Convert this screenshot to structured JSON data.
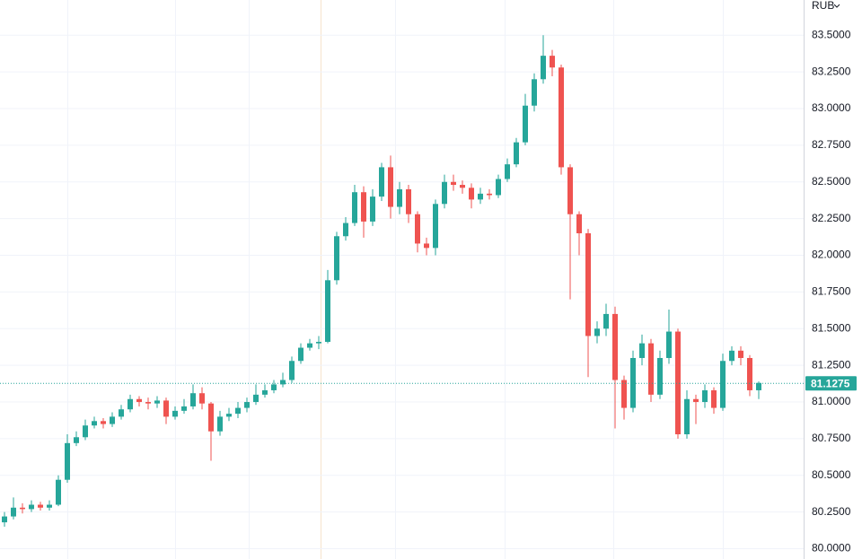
{
  "chart_data": {
    "type": "candlestick",
    "currency": "RUB",
    "up_color": "#26a69a",
    "down_color": "#ef5350",
    "grid": true,
    "ylim": [
      79.93,
      83.74
    ],
    "yticks": [
      {
        "value": 80,
        "label": "80.0000"
      },
      {
        "value": 80.25,
        "label": "80.2500"
      },
      {
        "value": 80.5,
        "label": "80.5000"
      },
      {
        "value": 80.75,
        "label": "80.7500"
      },
      {
        "value": 81,
        "label": "81.0000"
      },
      {
        "value": 81.25,
        "label": "81.2500"
      },
      {
        "value": 81.5,
        "label": "81.5000"
      },
      {
        "value": 81.75,
        "label": "81.7500"
      },
      {
        "value": 82,
        "label": "82.0000"
      },
      {
        "value": 82.25,
        "label": "82.2500"
      },
      {
        "value": 82.5,
        "label": "82.5000"
      },
      {
        "value": 82.75,
        "label": "82.7500"
      },
      {
        "value": 83,
        "label": "83.0000"
      },
      {
        "value": 83.25,
        "label": "83.2500"
      },
      {
        "value": 83.5,
        "label": "83.5000"
      }
    ],
    "last_price": 81.1275,
    "candles": [
      [
        80.18,
        80.25,
        80.15,
        80.22
      ],
      [
        80.22,
        80.35,
        80.2,
        80.28
      ],
      [
        80.28,
        80.31,
        80.24,
        80.27
      ],
      [
        80.27,
        80.33,
        80.25,
        80.3
      ],
      [
        80.3,
        80.32,
        80.26,
        80.28
      ],
      [
        80.28,
        80.33,
        80.26,
        80.3
      ],
      [
        80.3,
        80.5,
        80.29,
        80.47
      ],
      [
        80.47,
        80.78,
        80.45,
        80.72
      ],
      [
        80.72,
        80.8,
        80.7,
        80.76
      ],
      [
        80.76,
        80.88,
        80.74,
        80.84
      ],
      [
        80.84,
        80.9,
        80.82,
        80.87
      ],
      [
        80.87,
        80.89,
        80.82,
        80.85
      ],
      [
        80.85,
        80.93,
        80.83,
        80.9
      ],
      [
        80.9,
        80.98,
        80.88,
        80.95
      ],
      [
        80.95,
        81.05,
        80.93,
        81.02
      ],
      [
        81.02,
        81.04,
        80.97,
        81.0
      ],
      [
        81.0,
        81.03,
        80.95,
        80.99
      ],
      [
        80.99,
        81.04,
        80.96,
        81.01
      ],
      [
        81.01,
        81.03,
        80.85,
        80.9
      ],
      [
        80.9,
        80.97,
        80.88,
        80.94
      ],
      [
        80.94,
        81.02,
        80.92,
        80.97
      ],
      [
        80.97,
        81.12,
        80.95,
        81.06
      ],
      [
        81.06,
        81.1,
        80.95,
        80.99
      ],
      [
        80.99,
        81.0,
        80.6,
        80.8
      ],
      [
        80.8,
        80.94,
        80.77,
        80.9
      ],
      [
        80.9,
        80.96,
        80.87,
        80.92
      ],
      [
        80.92,
        81.0,
        80.89,
        80.96
      ],
      [
        80.96,
        81.03,
        80.93,
        81.0
      ],
      [
        81.0,
        81.12,
        80.98,
        81.05
      ],
      [
        81.05,
        81.12,
        81.03,
        81.08
      ],
      [
        81.08,
        81.15,
        81.06,
        81.12
      ],
      [
        81.12,
        81.2,
        81.1,
        81.15
      ],
      [
        81.15,
        81.31,
        81.13,
        81.28
      ],
      [
        81.28,
        81.4,
        81.26,
        81.37
      ],
      [
        81.37,
        81.43,
        81.35,
        81.4
      ],
      [
        81.4,
        81.45,
        81.36,
        81.41
      ],
      [
        81.41,
        81.9,
        81.4,
        81.83
      ],
      [
        81.83,
        82.16,
        81.8,
        82.13
      ],
      [
        82.13,
        82.26,
        82.1,
        82.22
      ],
      [
        82.22,
        82.48,
        82.2,
        82.43
      ],
      [
        82.43,
        82.47,
        82.12,
        82.23
      ],
      [
        82.23,
        82.45,
        82.2,
        82.4
      ],
      [
        82.4,
        82.63,
        82.37,
        82.6
      ],
      [
        82.6,
        82.68,
        82.25,
        82.33
      ],
      [
        82.33,
        82.5,
        82.28,
        82.45
      ],
      [
        82.45,
        82.48,
        82.22,
        82.28
      ],
      [
        82.28,
        82.3,
        82.02,
        82.08
      ],
      [
        82.08,
        82.12,
        82.0,
        82.05
      ],
      [
        82.05,
        82.38,
        82.0,
        82.35
      ],
      [
        82.35,
        82.55,
        82.32,
        82.5
      ],
      [
        82.5,
        82.55,
        82.44,
        82.48
      ],
      [
        82.48,
        82.51,
        82.42,
        82.46
      ],
      [
        82.46,
        82.49,
        82.32,
        82.38
      ],
      [
        82.38,
        82.46,
        82.35,
        82.42
      ],
      [
        82.42,
        82.45,
        82.38,
        82.41
      ],
      [
        82.41,
        82.55,
        82.39,
        82.52
      ],
      [
        82.52,
        82.66,
        82.5,
        82.62
      ],
      [
        82.62,
        82.8,
        82.6,
        82.77
      ],
      [
        82.77,
        83.1,
        82.75,
        83.02
      ],
      [
        83.02,
        83.24,
        82.98,
        83.2
      ],
      [
        83.2,
        83.5,
        83.17,
        83.36
      ],
      [
        83.36,
        83.4,
        83.22,
        83.28
      ],
      [
        83.28,
        83.3,
        82.55,
        82.6
      ],
      [
        82.6,
        82.62,
        81.7,
        82.28
      ],
      [
        82.28,
        82.3,
        82.0,
        82.15
      ],
      [
        82.15,
        82.18,
        81.17,
        81.45
      ],
      [
        81.45,
        81.55,
        81.4,
        81.5
      ],
      [
        81.5,
        81.67,
        81.45,
        81.6
      ],
      [
        81.6,
        81.65,
        80.82,
        81.15
      ],
      [
        81.15,
        81.18,
        80.88,
        80.96
      ],
      [
        80.96,
        81.35,
        80.93,
        81.3
      ],
      [
        81.3,
        81.46,
        81.25,
        81.4
      ],
      [
        81.4,
        81.43,
        81.0,
        81.05
      ],
      [
        81.05,
        81.35,
        81.02,
        81.3
      ],
      [
        81.3,
        81.63,
        81.26,
        81.48
      ],
      [
        81.48,
        81.5,
        80.75,
        80.78
      ],
      [
        80.78,
        81.08,
        80.75,
        81.02
      ],
      [
        81.02,
        81.05,
        80.85,
        81.0
      ],
      [
        81.0,
        81.12,
        80.96,
        81.08
      ],
      [
        81.08,
        81.1,
        80.92,
        80.96
      ],
      [
        80.96,
        81.33,
        80.94,
        81.28
      ],
      [
        81.28,
        81.38,
        81.25,
        81.35
      ],
      [
        81.35,
        81.38,
        81.25,
        81.3
      ],
      [
        81.3,
        81.32,
        81.04,
        81.08
      ],
      [
        81.08,
        81.14,
        81.02,
        81.13
      ]
    ]
  }
}
